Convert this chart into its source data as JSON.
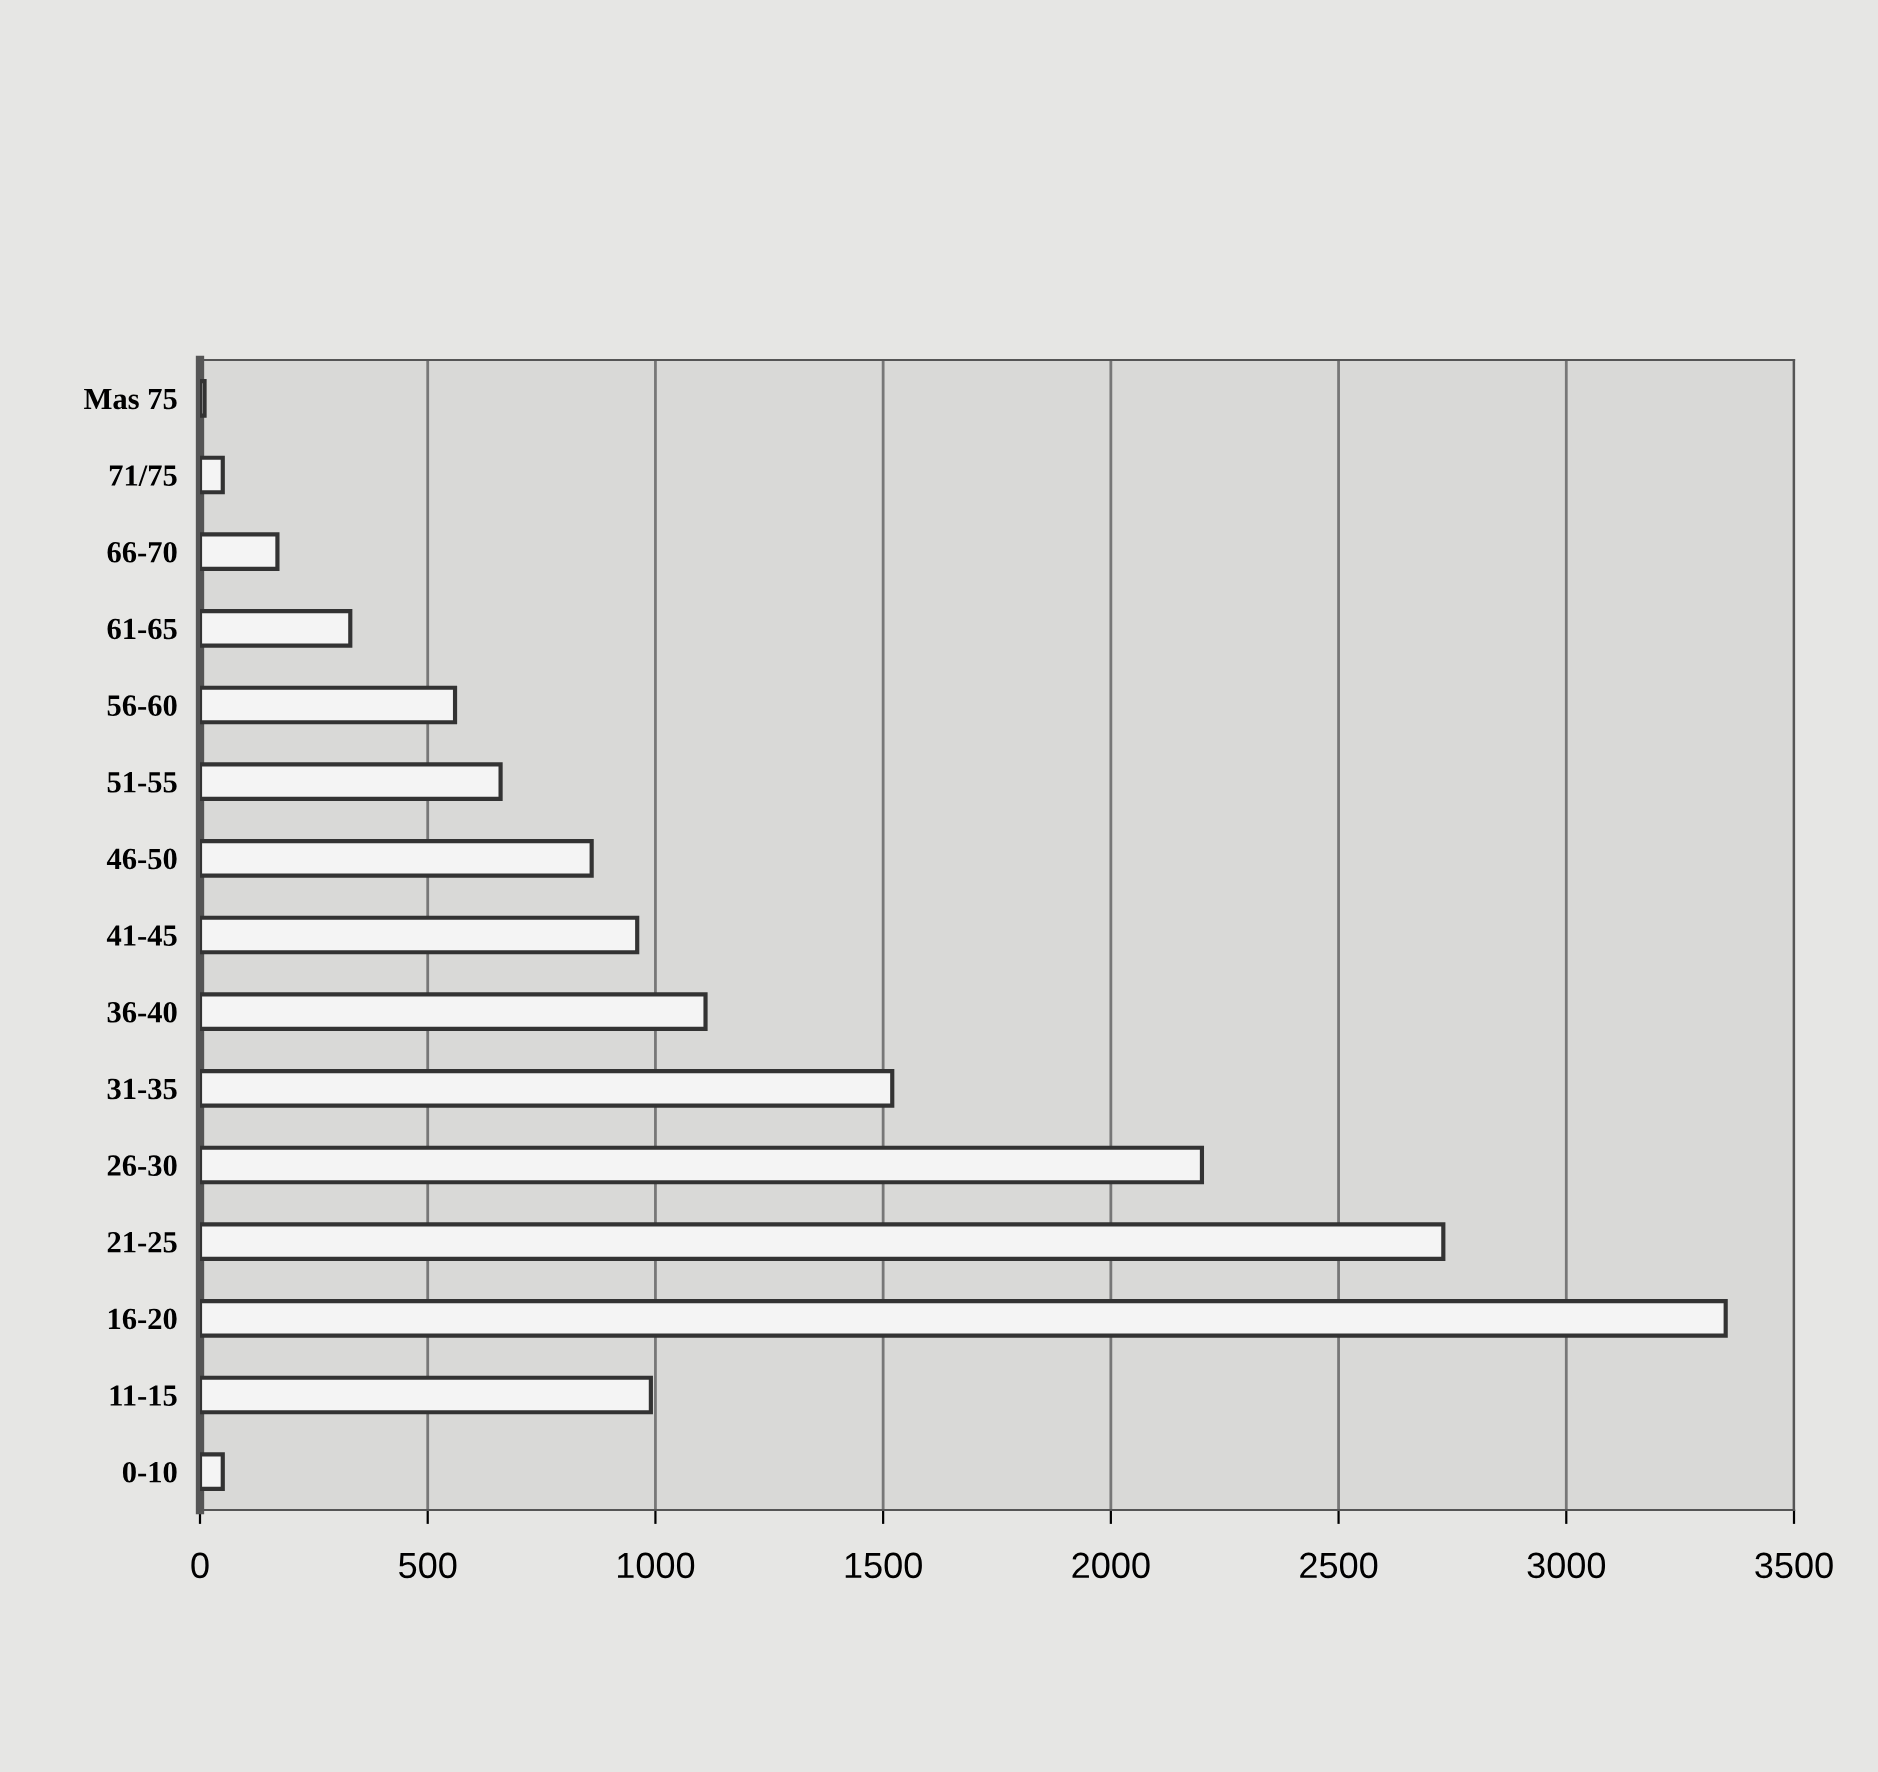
{
  "chart_data": {
    "type": "bar",
    "orientation": "horizontal",
    "categories": [
      "Mas 75",
      "71/75",
      "66-70",
      "61-65",
      "56-60",
      "51-55",
      "46-50",
      "41-45",
      "36-40",
      "31-35",
      "26-30",
      "21-25",
      "16-20",
      "11-15",
      "0-10"
    ],
    "values": [
      10,
      50,
      170,
      330,
      560,
      660,
      860,
      960,
      1110,
      1520,
      2200,
      2730,
      3350,
      990,
      50
    ],
    "color": "#f4f4f4",
    "xlim": [
      0,
      3500
    ],
    "xticks": [
      0,
      500,
      1000,
      1500,
      2000,
      2500,
      3000,
      3500
    ],
    "grid": "x"
  }
}
